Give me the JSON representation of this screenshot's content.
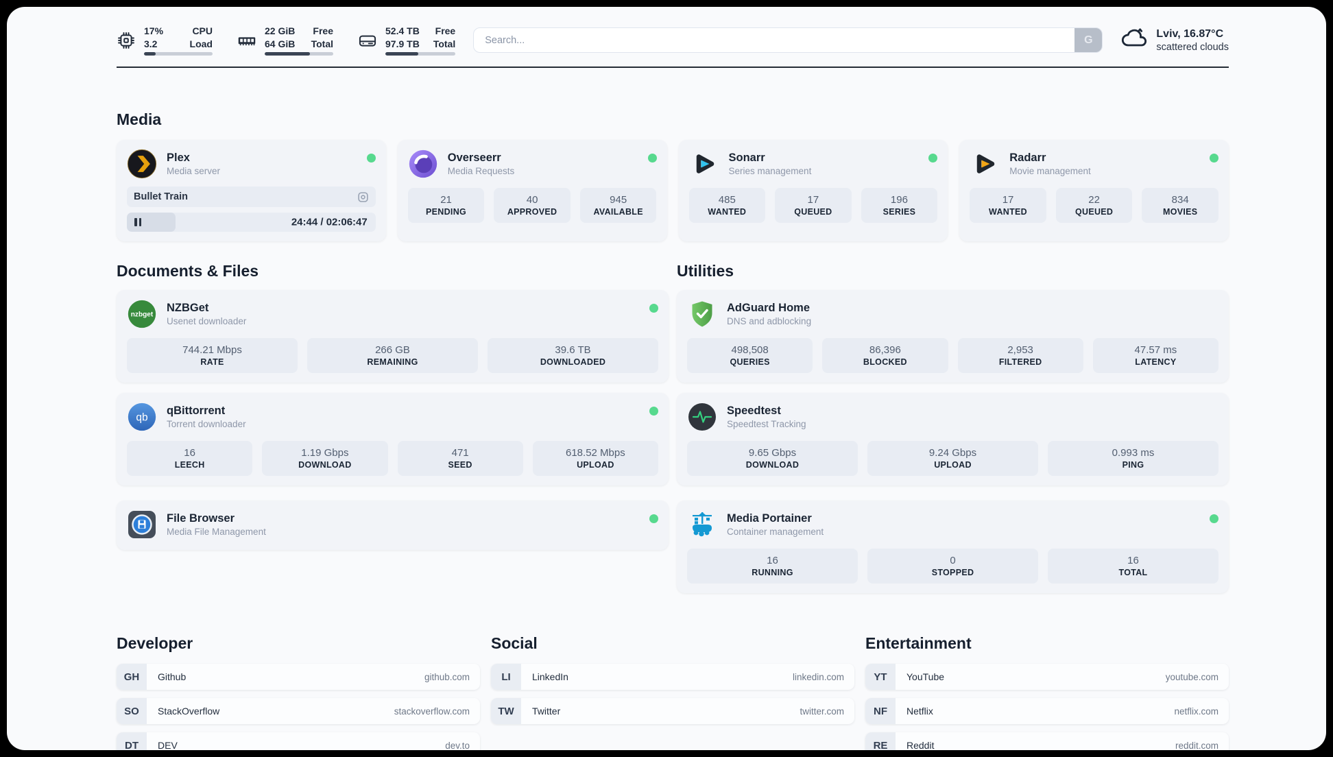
{
  "colors": {
    "status_online": "#57d98e",
    "header_progress_fill": "#3a4454",
    "plex_brand": "#e5a00d",
    "sonarr_brand": "#32c3ee",
    "radarr_brand": "#f2a515",
    "qbittorrent_brand": "#3e7fd6",
    "nzbget_brand": "#378a3c",
    "adguard_brand": "#5fbb57",
    "speedtest_pulse": "#35d07f",
    "portainer_brand": "#1499d3"
  },
  "header": {
    "stats": [
      {
        "icon": "cpu-icon",
        "values": [
          "17%",
          "3.2"
        ],
        "labels": [
          "CPU",
          "Load"
        ],
        "progress_pct": 17
      },
      {
        "icon": "ram-icon",
        "values": [
          "22 GiB",
          "64 GiB"
        ],
        "labels": [
          "Free",
          "Total"
        ],
        "progress_pct": 66
      },
      {
        "icon": "disk-icon",
        "values": [
          "52.4 TB",
          "97.9 TB"
        ],
        "labels": [
          "Free",
          "Total"
        ],
        "progress_pct": 47
      }
    ],
    "search": {
      "placeholder": "Search...",
      "engine_button": "G"
    },
    "weather": {
      "summary": "Lviv, 16.87°C",
      "condition": "scattered clouds"
    }
  },
  "icons": {
    "nzbget_label": "nzbget",
    "qbittorrent_label": "qb"
  },
  "sections": {
    "media": {
      "title": "Media",
      "apps": [
        {
          "name": "Plex",
          "subtitle": "Media server",
          "online": true,
          "now_playing": {
            "title": "Bullet Train",
            "time": "24:44 / 02:06:47",
            "progress_pct": 19.6
          }
        },
        {
          "name": "Overseerr",
          "subtitle": "Media Requests",
          "online": true,
          "stats": [
            {
              "value": "21",
              "label": "PENDING"
            },
            {
              "value": "40",
              "label": "APPROVED"
            },
            {
              "value": "945",
              "label": "AVAILABLE"
            }
          ]
        },
        {
          "name": "Sonarr",
          "subtitle": "Series management",
          "online": true,
          "stats": [
            {
              "value": "485",
              "label": "WANTED"
            },
            {
              "value": "17",
              "label": "QUEUED"
            },
            {
              "value": "196",
              "label": "SERIES"
            }
          ]
        },
        {
          "name": "Radarr",
          "subtitle": "Movie management",
          "online": true,
          "stats": [
            {
              "value": "17",
              "label": "WANTED"
            },
            {
              "value": "22",
              "label": "QUEUED"
            },
            {
              "value": "834",
              "label": "MOVIES"
            }
          ]
        }
      ]
    },
    "documents": {
      "title": "Documents & Files",
      "apps": [
        {
          "name": "NZBGet",
          "subtitle": "Usenet downloader",
          "online": true,
          "stats": [
            {
              "value": "744.21 Mbps",
              "label": "RATE"
            },
            {
              "value": "266 GB",
              "label": "REMAINING"
            },
            {
              "value": "39.6 TB",
              "label": "DOWNLOADED"
            }
          ]
        },
        {
          "name": "qBittorrent",
          "subtitle": "Torrent downloader",
          "online": true,
          "stats": [
            {
              "value": "16",
              "label": "LEECH"
            },
            {
              "value": "1.19 Gbps",
              "label": "DOWNLOAD"
            },
            {
              "value": "471",
              "label": "SEED"
            },
            {
              "value": "618.52 Mbps",
              "label": "UPLOAD"
            }
          ]
        },
        {
          "name": "File Browser",
          "subtitle": "Media File Management",
          "online": true
        }
      ]
    },
    "utilities": {
      "title": "Utilities",
      "apps": [
        {
          "name": "AdGuard Home",
          "subtitle": "DNS and adblocking",
          "stats": [
            {
              "value": "498,508",
              "label": "QUERIES"
            },
            {
              "value": "86,396",
              "label": "BLOCKED"
            },
            {
              "value": "2,953",
              "label": "FILTERED"
            },
            {
              "value": "47.57 ms",
              "label": "LATENCY"
            }
          ]
        },
        {
          "name": "Speedtest",
          "subtitle": "Speedtest Tracking",
          "stats": [
            {
              "value": "9.65 Gbps",
              "label": "DOWNLOAD"
            },
            {
              "value": "9.24 Gbps",
              "label": "UPLOAD"
            },
            {
              "value": "0.993 ms",
              "label": "PING"
            }
          ]
        },
        {
          "name": "Media Portainer",
          "subtitle": "Container management",
          "online": true,
          "stats": [
            {
              "value": "16",
              "label": "RUNNING"
            },
            {
              "value": "0",
              "label": "STOPPED"
            },
            {
              "value": "16",
              "label": "TOTAL"
            }
          ]
        }
      ]
    },
    "link_groups": [
      {
        "title": "Developer",
        "items": [
          {
            "tag": "GH",
            "name": "Github",
            "url": "github.com"
          },
          {
            "tag": "SO",
            "name": "StackOverflow",
            "url": "stackoverflow.com"
          },
          {
            "tag": "DT",
            "name": "DEV",
            "url": "dev.to"
          }
        ]
      },
      {
        "title": "Social",
        "items": [
          {
            "tag": "LI",
            "name": "LinkedIn",
            "url": "linkedin.com"
          },
          {
            "tag": "TW",
            "name": "Twitter",
            "url": "twitter.com"
          }
        ]
      },
      {
        "title": "Entertainment",
        "items": [
          {
            "tag": "YT",
            "name": "YouTube",
            "url": "youtube.com"
          },
          {
            "tag": "NF",
            "name": "Netflix",
            "url": "netflix.com"
          },
          {
            "tag": "RE",
            "name": "Reddit",
            "url": "reddit.com"
          }
        ]
      }
    ]
  }
}
